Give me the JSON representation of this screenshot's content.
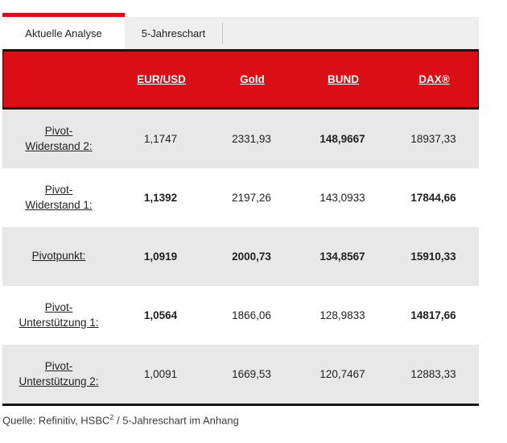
{
  "tabs": [
    {
      "label": "Aktuelle Analyse",
      "active": true
    },
    {
      "label": "5-Jahreschart",
      "active": false
    }
  ],
  "table": {
    "columns": [
      "EUR/USD",
      "Gold",
      "BUND",
      "DAX®"
    ],
    "rows": [
      {
        "label": "Pivot-Widerstand 2:",
        "label_lines": [
          "Pivot-",
          "Widerstand 2:"
        ],
        "values": [
          "1,1747",
          "2331,93",
          "148,9667",
          "18937,33"
        ],
        "bold": [
          false,
          false,
          true,
          false
        ]
      },
      {
        "label": "Pivot-Widerstand 1:",
        "label_lines": [
          "Pivot-",
          "Widerstand 1:"
        ],
        "values": [
          "1,1392",
          "2197,26",
          "143,0933",
          "17844,66"
        ],
        "bold": [
          true,
          false,
          false,
          true
        ]
      },
      {
        "label": "Pivotpunkt:",
        "label_lines": [
          "Pivotpunkt:",
          ""
        ],
        "values": [
          "1,0919",
          "2000,73",
          "134,8567",
          "15910,33"
        ],
        "bold": [
          true,
          true,
          true,
          true
        ]
      },
      {
        "label": "Pivot-Unterstützung 1:",
        "label_lines": [
          "Pivot-",
          "Unterstützung 1:"
        ],
        "values": [
          "1,0564",
          "1866,06",
          "128,9833",
          "14817,66"
        ],
        "bold": [
          true,
          false,
          false,
          true
        ]
      },
      {
        "label": "Pivot-Unterstützung 2:",
        "label_lines": [
          "Pivot-",
          "Unterstützung 2:"
        ],
        "values": [
          "1,0091",
          "1669,53",
          "120,7467",
          "12883,33"
        ],
        "bold": [
          false,
          false,
          false,
          false
        ]
      }
    ]
  },
  "footer": {
    "source_prefix": "Quelle: Refinitiv, HSBC",
    "superscript": "2",
    "source_suffix": " / 5-Jahreschart im Anhang"
  },
  "colors": {
    "accent_red": "#dc0e15",
    "line_black": "#141414",
    "row_gray": "#e8e8e8",
    "tab_gray": "#efefef"
  }
}
